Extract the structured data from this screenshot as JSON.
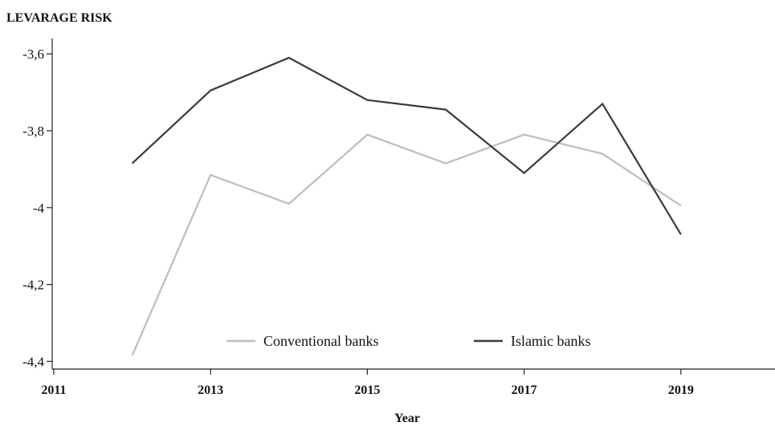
{
  "chart_data": {
    "type": "line",
    "title": "LEVARAGE RISK",
    "xlabel": "Year",
    "ylabel": "",
    "xlim": [
      2010.98,
      2020.2
    ],
    "ylim": [
      -4.42,
      -3.56
    ],
    "xticks": [
      2011,
      2013,
      2015,
      2017,
      2019
    ],
    "xtick_labels": [
      "2011",
      "2013",
      "2015",
      "2017",
      "2019"
    ],
    "yticks": [
      -3.6,
      -3.8,
      -4.0,
      -4.2,
      -4.4
    ],
    "ytick_labels": [
      "-3,6",
      "-3,8",
      "-4",
      "-4,2",
      "-4,4"
    ],
    "grid": false,
    "legend": "bottom-center",
    "series": [
      {
        "name": "Conventional banks",
        "color": "#bdbdbd",
        "x": [
          2012,
          2013,
          2014,
          2015,
          2016,
          2017,
          2018,
          2019
        ],
        "y": [
          -4.385,
          -3.915,
          -3.99,
          -3.81,
          -3.885,
          -3.81,
          -3.86,
          -3.995
        ]
      },
      {
        "name": "Islamic banks",
        "color": "#3a3a3a",
        "x": [
          2012,
          2013,
          2014,
          2015,
          2016,
          2017,
          2018,
          2019
        ],
        "y": [
          -3.885,
          -3.695,
          -3.61,
          -3.72,
          -3.745,
          -3.91,
          -3.73,
          -4.07
        ]
      }
    ]
  }
}
